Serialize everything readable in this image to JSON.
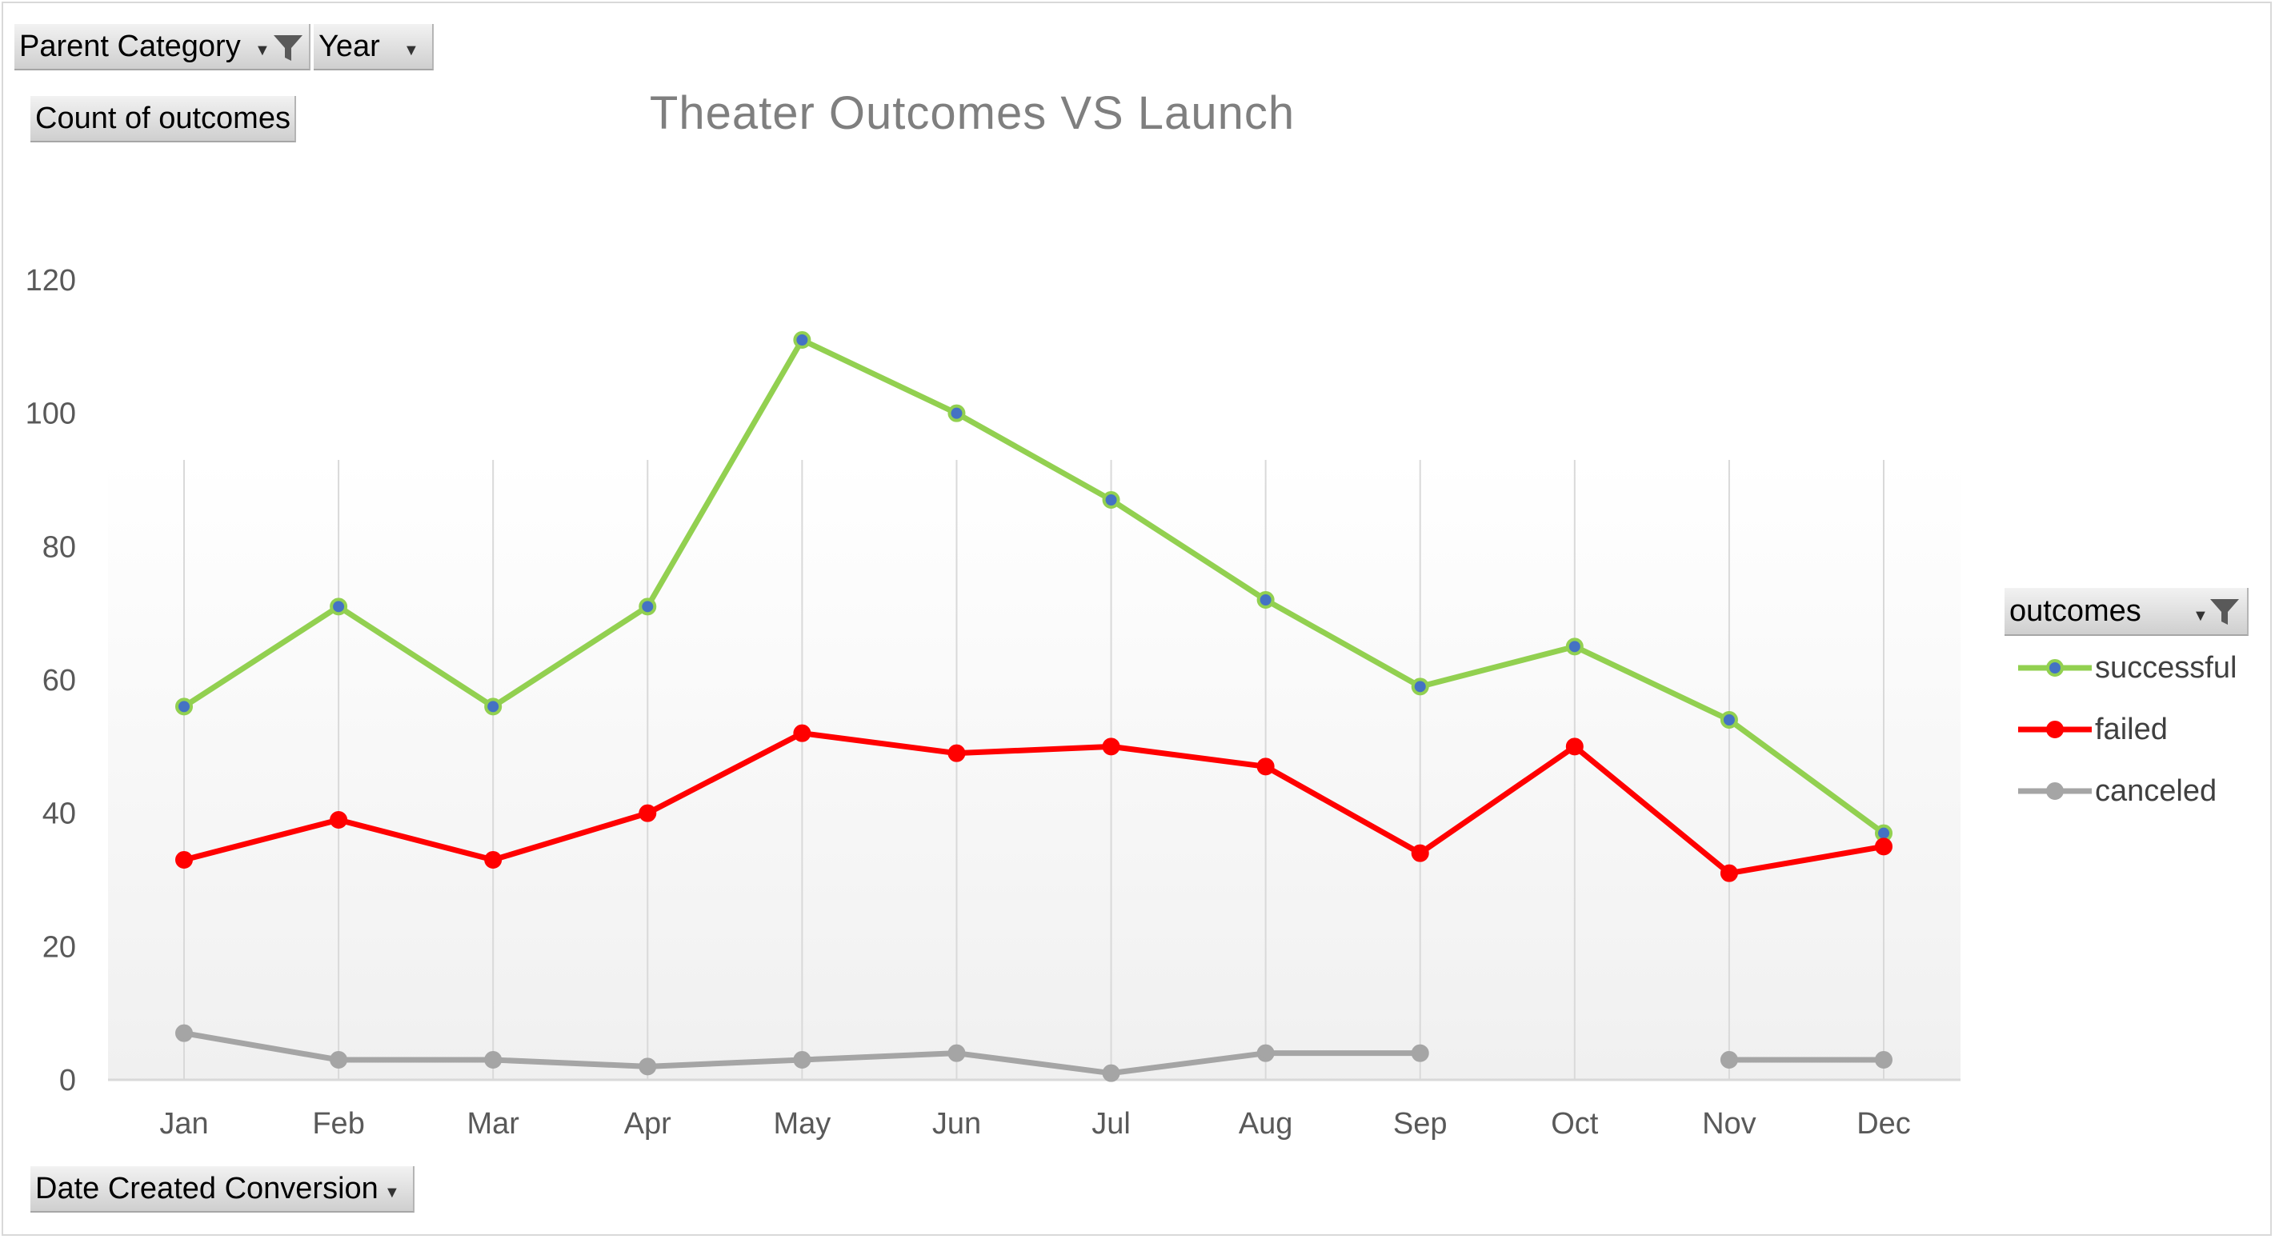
{
  "filters": {
    "parent_category": "Parent Category",
    "year": "Year",
    "value_field": "Count of outcomes",
    "axis_field": "Date Created Conversion",
    "legend_field": "outcomes"
  },
  "colors": {
    "successful": "#92d050",
    "successful_marker": "#4472c4",
    "failed": "#ff0000",
    "canceled": "#a5a5a5",
    "grid": "#d9d9d9",
    "axis_text": "#595959"
  },
  "chart_data": {
    "type": "line",
    "title": "Theater Outcomes VS Launch",
    "xlabel": "",
    "ylabel": "",
    "ylim": [
      0,
      120
    ],
    "yticks": [
      0,
      20,
      40,
      60,
      80,
      100,
      120
    ],
    "categories": [
      "Jan",
      "Feb",
      "Mar",
      "Apr",
      "May",
      "Jun",
      "Jul",
      "Aug",
      "Sep",
      "Oct",
      "Nov",
      "Dec"
    ],
    "legend_position": "right",
    "series": [
      {
        "key": "successful",
        "name": "successful",
        "values": [
          56,
          71,
          56,
          71,
          111,
          100,
          87,
          72,
          59,
          65,
          54,
          37
        ]
      },
      {
        "key": "failed",
        "name": "failed",
        "values": [
          33,
          39,
          33,
          40,
          52,
          49,
          50,
          47,
          34,
          50,
          31,
          35
        ]
      },
      {
        "key": "canceled",
        "name": "canceled",
        "values": [
          7,
          3,
          3,
          2,
          3,
          4,
          1,
          4,
          4,
          null,
          3,
          3
        ]
      }
    ]
  }
}
